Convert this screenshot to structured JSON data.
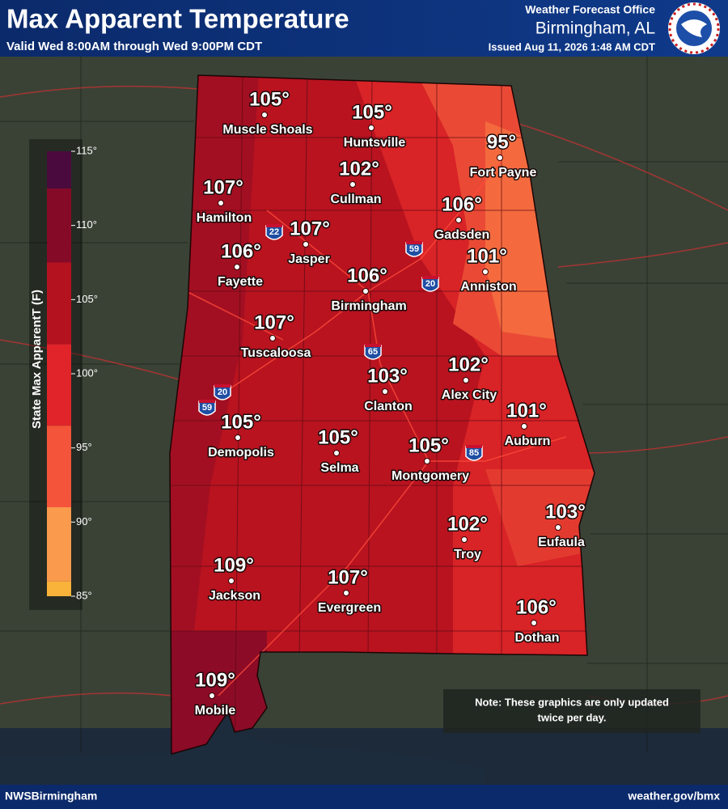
{
  "header": {
    "title": "Max Apparent Temperature",
    "valid": "Valid Wed 8:00AM through Wed 9:00PM CDT",
    "office": "Weather Forecast Office",
    "location": "Birmingham, AL",
    "issued": "Issued Aug 11, 2026 1:48 AM CDT"
  },
  "legend": {
    "title": "State Max ApparentT (F)",
    "range": [
      85,
      115
    ],
    "ticks": [
      {
        "value": 85,
        "label": "85°"
      },
      {
        "value": 90,
        "label": "90°"
      },
      {
        "value": 95,
        "label": "95°"
      },
      {
        "value": 100,
        "label": "100°"
      },
      {
        "value": 105,
        "label": "105°"
      },
      {
        "value": 110,
        "label": "110°"
      },
      {
        "value": 115,
        "label": "115°"
      }
    ],
    "bands": [
      {
        "from": 85,
        "to": 86,
        "color": "#f9b23a"
      },
      {
        "from": 86,
        "to": 91,
        "color": "#f99a4c"
      },
      {
        "from": 91,
        "to": 96.5,
        "color": "#f4553a"
      },
      {
        "from": 96.5,
        "to": 102,
        "color": "#e0242a"
      },
      {
        "from": 102,
        "to": 107.5,
        "color": "#b5121f"
      },
      {
        "from": 107.5,
        "to": 112.5,
        "color": "#850a28"
      },
      {
        "from": 112.5,
        "to": 115,
        "color": "#4a0a3e"
      }
    ]
  },
  "cities": [
    {
      "name": "Muscle Shoals",
      "temp": {
        "value": 105,
        "label": "105°"
      }
    },
    {
      "name": "Huntsville",
      "temp": {
        "value": 105,
        "label": "105°"
      }
    },
    {
      "name": "Fort Payne",
      "temp": {
        "value": 95,
        "label": "95°"
      }
    },
    {
      "name": "Cullman",
      "temp": {
        "value": 102,
        "label": "102°"
      }
    },
    {
      "name": "Hamilton",
      "temp": {
        "value": 107,
        "label": "107°"
      }
    },
    {
      "name": "Gadsden",
      "temp": {
        "value": 106,
        "label": "106°"
      }
    },
    {
      "name": "Jasper",
      "temp": {
        "value": 107,
        "label": "107°"
      }
    },
    {
      "name": "Fayette",
      "temp": {
        "value": 106,
        "label": "106°"
      }
    },
    {
      "name": "Anniston",
      "temp": {
        "value": 101,
        "label": "101°"
      }
    },
    {
      "name": "Birmingham",
      "temp": {
        "value": 106,
        "label": "106°"
      }
    },
    {
      "name": "Tuscaloosa",
      "temp": {
        "value": 107,
        "label": "107°"
      }
    },
    {
      "name": "Alex City",
      "temp": {
        "value": 102,
        "label": "102°"
      }
    },
    {
      "name": "Clanton",
      "temp": {
        "value": 103,
        "label": "103°"
      }
    },
    {
      "name": "Auburn",
      "temp": {
        "value": 101,
        "label": "101°"
      }
    },
    {
      "name": "Demopolis",
      "temp": {
        "value": 105,
        "label": "105°"
      }
    },
    {
      "name": "Selma",
      "temp": {
        "value": 105,
        "label": "105°"
      }
    },
    {
      "name": "Montgomery",
      "temp": {
        "value": 105,
        "label": "105°"
      }
    },
    {
      "name": "Eufaula",
      "temp": {
        "value": 103,
        "label": "103°"
      }
    },
    {
      "name": "Troy",
      "temp": {
        "value": 102,
        "label": "102°"
      }
    },
    {
      "name": "Jackson",
      "temp": {
        "value": 109,
        "label": "109°"
      }
    },
    {
      "name": "Evergreen",
      "temp": {
        "value": 107,
        "label": "107°"
      }
    },
    {
      "name": "Dothan",
      "temp": {
        "value": 106,
        "label": "106°"
      }
    },
    {
      "name": "Mobile",
      "temp": {
        "value": 109,
        "label": "109°"
      }
    }
  ],
  "interstates": [
    "22",
    "59",
    "20",
    "65",
    "20",
    "59",
    "85"
  ],
  "note": [
    "Note: These graphics are only updated",
    "twice per day."
  ],
  "footer": {
    "left": "NWSBirmingham",
    "right": "weather.gov/bmx"
  }
}
